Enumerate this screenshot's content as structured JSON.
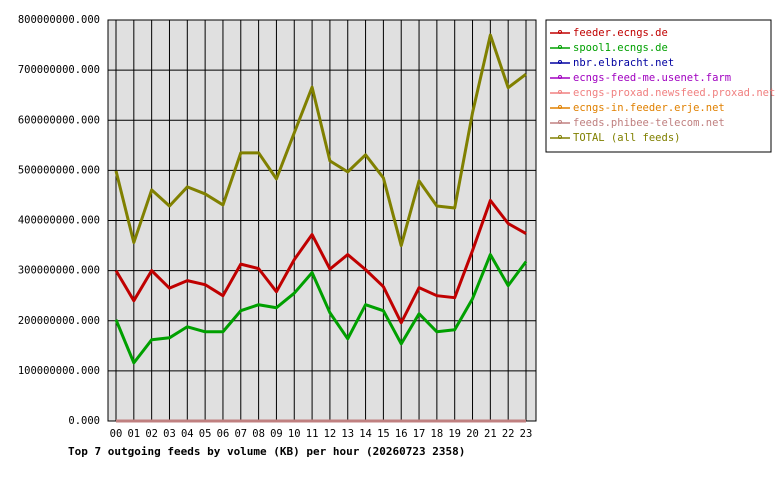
{
  "chart_data": {
    "type": "line",
    "title": "Top 7 outgoing feeds by volume (KB) per hour (20260723 2358)",
    "categories": [
      "00",
      "01",
      "02",
      "03",
      "04",
      "05",
      "06",
      "07",
      "08",
      "09",
      "10",
      "11",
      "12",
      "13",
      "14",
      "15",
      "16",
      "17",
      "18",
      "19",
      "20",
      "21",
      "22",
      "23"
    ],
    "ylim": [
      0,
      800000000
    ],
    "yticks": [
      {
        "value": 0,
        "label": "0.000"
      },
      {
        "value": 100000000,
        "label": "100000000.000"
      },
      {
        "value": 200000000,
        "label": "200000000.000"
      },
      {
        "value": 300000000,
        "label": "300000000.000"
      },
      {
        "value": 400000000,
        "label": "400000000.000"
      },
      {
        "value": 500000000,
        "label": "500000000.000"
      },
      {
        "value": 600000000,
        "label": "600000000.000"
      },
      {
        "value": 700000000,
        "label": "700000000.000"
      },
      {
        "value": 800000000,
        "label": "800000000.000"
      }
    ],
    "grid": true,
    "legend": "right",
    "series": [
      {
        "name": "feeder.ecngs.de",
        "color": "#c00000",
        "values": [
          300000000,
          240000000,
          300000000,
          265000000,
          280000000,
          272000000,
          250000000,
          313000000,
          304000000,
          258000000,
          322000000,
          372000000,
          303000000,
          332000000,
          302000000,
          268000000,
          196000000,
          266000000,
          250000000,
          246000000,
          340000000,
          440000000,
          394000000,
          374000000
        ]
      },
      {
        "name": "spool1.ecngs.de",
        "color": "#00a000",
        "values": [
          202000000,
          116000000,
          162000000,
          166000000,
          188000000,
          178000000,
          178000000,
          220000000,
          232000000,
          226000000,
          255000000,
          296000000,
          216000000,
          164000000,
          232000000,
          220000000,
          154000000,
          214000000,
          178000000,
          182000000,
          244000000,
          332000000,
          270000000,
          318000000
        ]
      },
      {
        "name": "nbr.elbracht.net",
        "color": "#0000a0",
        "values": [
          0,
          0,
          0,
          0,
          0,
          0,
          0,
          0,
          0,
          0,
          0,
          0,
          0,
          0,
          0,
          0,
          0,
          0,
          0,
          0,
          0,
          0,
          0,
          0
        ]
      },
      {
        "name": "ecngs-feed-me.usenet.farm",
        "color": "#a000c0",
        "values": [
          0,
          0,
          0,
          0,
          0,
          0,
          0,
          0,
          0,
          0,
          0,
          0,
          0,
          0,
          0,
          0,
          0,
          0,
          0,
          0,
          0,
          0,
          0,
          0
        ]
      },
      {
        "name": "ecngs-proxad.newsfeed.proxad.net",
        "color": "#f08080",
        "values": [
          0,
          0,
          0,
          0,
          0,
          0,
          0,
          0,
          0,
          0,
          0,
          0,
          0,
          0,
          0,
          0,
          0,
          0,
          0,
          0,
          0,
          0,
          0,
          0
        ]
      },
      {
        "name": "ecngs-in.feeder.erje.net",
        "color": "#e08000",
        "values": [
          0,
          0,
          0,
          0,
          0,
          0,
          0,
          0,
          0,
          0,
          0,
          0,
          0,
          0,
          0,
          0,
          0,
          0,
          0,
          0,
          0,
          0,
          0,
          0
        ]
      },
      {
        "name": "feeds.phibee-telecom.net",
        "color": "#c08080",
        "values": [
          0,
          0,
          0,
          0,
          0,
          0,
          0,
          0,
          0,
          0,
          0,
          0,
          0,
          0,
          0,
          0,
          0,
          0,
          0,
          0,
          0,
          0,
          0,
          0
        ]
      },
      {
        "name": "TOTAL (all feeds)",
        "color": "#808000",
        "values": [
          499000000,
          356000000,
          461000000,
          429000000,
          467000000,
          453000000,
          431000000,
          535000000,
          535000000,
          483000000,
          575000000,
          666000000,
          519000000,
          497000000,
          531000000,
          485000000,
          350000000,
          479000000,
          429000000,
          425000000,
          615000000,
          770000000,
          665000000,
          692000000
        ]
      }
    ]
  }
}
